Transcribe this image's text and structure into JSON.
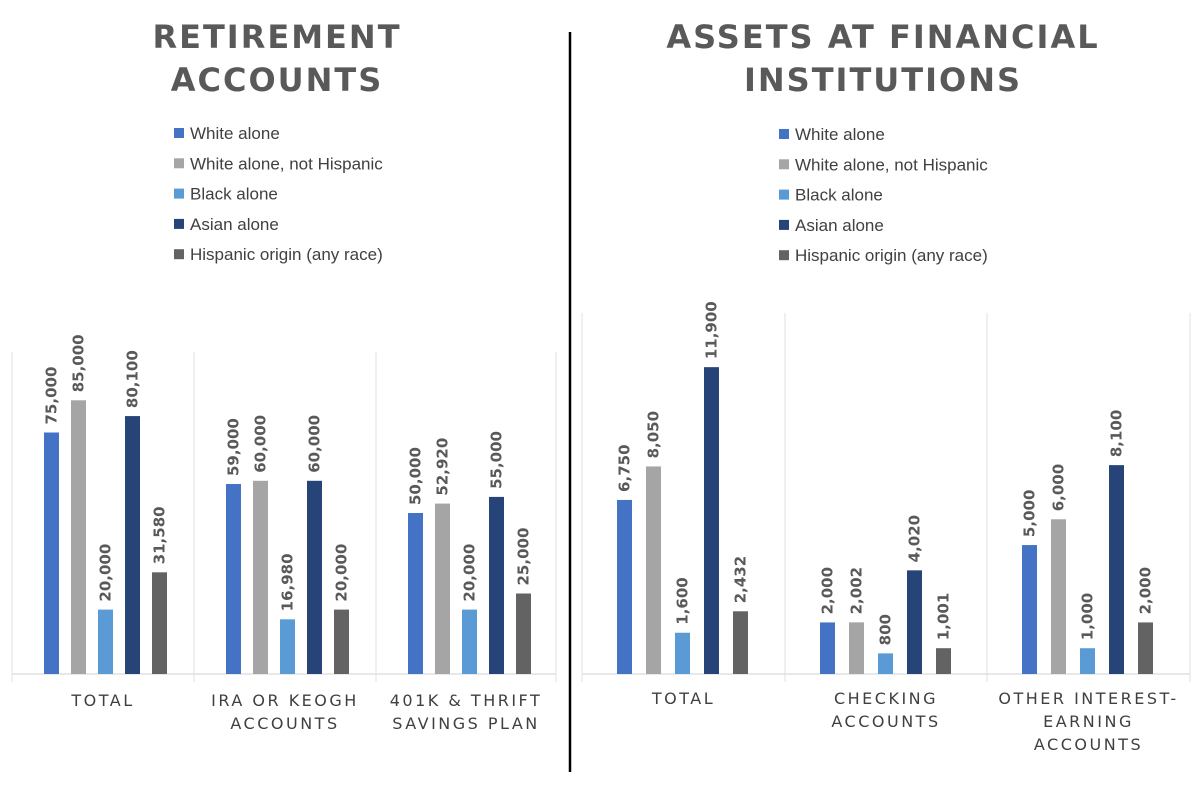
{
  "colors": {
    "White alone": "#4472c4",
    "White alone, not Hispanic": "#a5a5a5",
    "Black alone": "#5b9bd5",
    "Asian alone": "#264478",
    "Hispanic origin (any race)": "#636363"
  },
  "chart_data": [
    {
      "type": "bar",
      "title": "RETIREMENT ACCOUNTS",
      "title_lines": [
        "RETIREMENT",
        "ACCOUNTS"
      ],
      "categories": [
        "TOTAL",
        "IRA OR KEOGH ACCOUNTS",
        "401K & THRIFT SAVINGS PLAN"
      ],
      "category_lines": [
        [
          "TOTAL"
        ],
        [
          "IRA OR KEOGH",
          "ACCOUNTS"
        ],
        [
          "401K & THRIFT",
          "SAVINGS PLAN"
        ]
      ],
      "series": [
        {
          "name": "White alone",
          "values": [
            75000,
            59000,
            50000
          ]
        },
        {
          "name": "White alone, not Hispanic",
          "values": [
            85000,
            60000,
            52920
          ]
        },
        {
          "name": "Black alone",
          "values": [
            20000,
            16980,
            20000
          ]
        },
        {
          "name": "Asian alone",
          "values": [
            80100,
            60000,
            55000
          ]
        },
        {
          "name": "Hispanic origin (any race)",
          "values": [
            31580,
            20000,
            25000
          ]
        }
      ],
      "legend": "top",
      "grid": false
    },
    {
      "type": "bar",
      "title": "ASSETS AT FINANCIAL INSTITUTIONS",
      "title_lines": [
        "ASSETS AT FINANCIAL",
        "INSTITUTIONS"
      ],
      "categories": [
        "TOTAL",
        "CHECKING ACCOUNTS",
        "OTHER INTEREST-EARNING ACCOUNTS"
      ],
      "category_lines": [
        [
          "TOTAL"
        ],
        [
          "CHECKING",
          "ACCOUNTS"
        ],
        [
          "OTHER INTEREST-",
          "EARNING",
          "ACCOUNTS"
        ]
      ],
      "series": [
        {
          "name": "White alone",
          "values": [
            6750,
            2000,
            5000
          ]
        },
        {
          "name": "White alone, not Hispanic",
          "values": [
            8050,
            2002,
            6000
          ]
        },
        {
          "name": "Black alone",
          "values": [
            1600,
            800,
            1000
          ]
        },
        {
          "name": "Asian alone",
          "values": [
            11900,
            4020,
            8100
          ]
        },
        {
          "name": "Hispanic origin (any race)",
          "values": [
            2432,
            1001,
            2000
          ]
        }
      ],
      "legend": "top",
      "grid": false
    }
  ]
}
